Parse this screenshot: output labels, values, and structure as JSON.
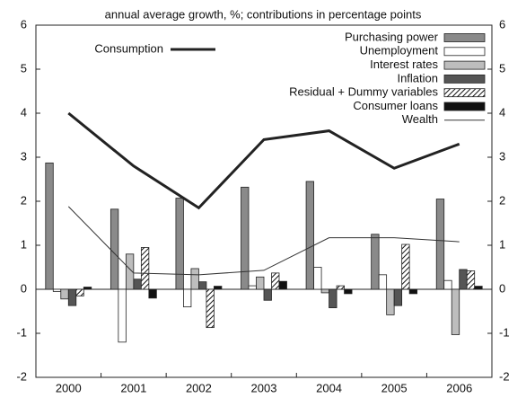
{
  "chart_data": {
    "type": "bar",
    "title": "annual average growth, %; contributions in percentage points",
    "categories": [
      "2000",
      "2001",
      "2002",
      "2003",
      "2004",
      "2005",
      "2006"
    ],
    "series": [
      {
        "name": "Purchasing power",
        "type": "bar",
        "color": "#8a8a8a",
        "values": [
          2.87,
          1.82,
          2.07,
          2.32,
          2.45,
          1.25,
          2.05
        ]
      },
      {
        "name": "Unemployment",
        "type": "bar",
        "color": "#ffffff",
        "values": [
          -0.05,
          -1.2,
          -0.4,
          0.08,
          0.5,
          0.33,
          0.2
        ]
      },
      {
        "name": "Interest rates",
        "type": "bar",
        "color": "#bdbdbd",
        "values": [
          -0.22,
          0.8,
          0.47,
          0.28,
          -0.08,
          -0.58,
          -1.03
        ]
      },
      {
        "name": "Inflation",
        "type": "bar",
        "color": "#555555",
        "values": [
          -0.37,
          0.23,
          0.17,
          -0.25,
          -0.42,
          -0.37,
          0.45
        ]
      },
      {
        "name": "Residual + Dummy variables",
        "type": "bar",
        "color": "#111111",
        "pattern": "hatch",
        "values": [
          -0.15,
          0.95,
          -0.87,
          0.37,
          0.08,
          1.02,
          0.42
        ]
      },
      {
        "name": "Consumer loans",
        "type": "bar",
        "color": "#111111",
        "values": [
          0.05,
          -0.2,
          0.07,
          0.18,
          -0.1,
          -0.1,
          0.07
        ]
      },
      {
        "name": "Wealth",
        "type": "line",
        "color": "#333333",
        "width": 1,
        "values": [
          1.88,
          0.37,
          0.33,
          0.43,
          1.17,
          1.17,
          1.08
        ]
      },
      {
        "name": "Consumption",
        "type": "line",
        "color": "#222222",
        "width": 3,
        "values": [
          4.0,
          2.8,
          1.85,
          3.4,
          3.6,
          2.75,
          3.3
        ]
      }
    ],
    "ylim": [
      -2,
      6
    ],
    "yticks": [
      -2,
      -1,
      0,
      1,
      2,
      3,
      4,
      5,
      6
    ],
    "y2lim": [
      -2,
      6
    ],
    "y2ticks": [
      -2,
      -1,
      0,
      1,
      2,
      3,
      4,
      5,
      6
    ],
    "grid": false
  }
}
